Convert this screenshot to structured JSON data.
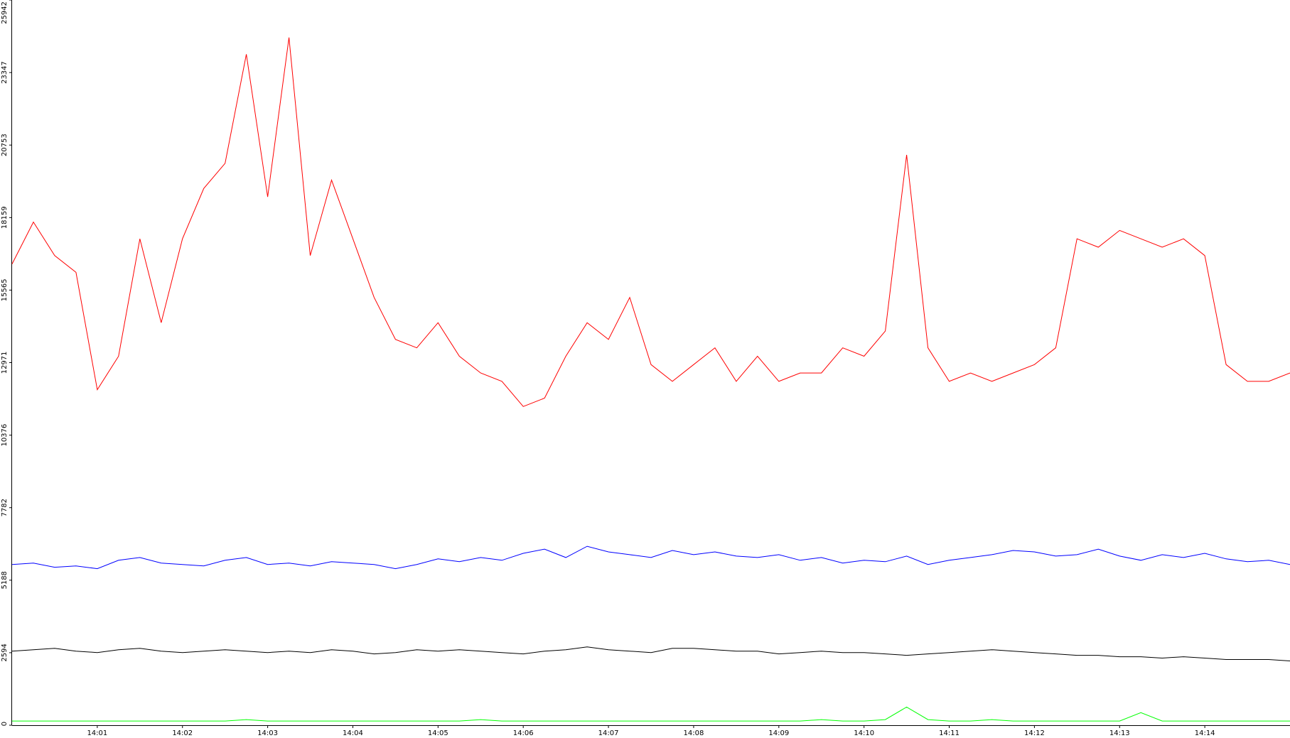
{
  "chart_data": {
    "type": "line",
    "categories": [
      null,
      null,
      null,
      null,
      "14:01",
      null,
      null,
      null,
      "14:02",
      null,
      null,
      null,
      "14:03",
      null,
      null,
      null,
      "14:04",
      null,
      null,
      null,
      "14:05",
      null,
      null,
      null,
      "14:06",
      null,
      null,
      null,
      "14:07",
      null,
      null,
      null,
      "14:08",
      null,
      null,
      null,
      "14:09",
      null,
      null,
      null,
      "14:10",
      null,
      null,
      null,
      "14:11",
      null,
      null,
      null,
      "14:12",
      null,
      null,
      null,
      "14:13",
      null,
      null,
      null,
      "14:14",
      null,
      null,
      null,
      null
    ],
    "series": [
      {
        "color": "#ff0000",
        "values": [
          16500,
          18000,
          16800,
          16200,
          12000,
          13200,
          17400,
          14400,
          17400,
          19200,
          20100,
          24000,
          18900,
          24600,
          16800,
          19500,
          17400,
          15300,
          13800,
          13500,
          14400,
          13200,
          12600,
          12300,
          11400,
          11700,
          13200,
          14400,
          13800,
          15300,
          12900,
          12300,
          12900,
          13500,
          12300,
          13200,
          12300,
          12600,
          12600,
          13500,
          13200,
          14100,
          20400,
          13500,
          12300,
          12600,
          12300,
          12600,
          12900,
          13500,
          17400,
          17100,
          17700,
          17400,
          17100,
          17400,
          16800,
          12900,
          12300,
          12300,
          12600
        ]
      },
      {
        "color": "#0000ff",
        "values": [
          5750,
          5800,
          5650,
          5700,
          5600,
          5900,
          6000,
          5800,
          5750,
          5700,
          5900,
          6000,
          5750,
          5800,
          5700,
          5850,
          5800,
          5750,
          5600,
          5750,
          5950,
          5850,
          6000,
          5900,
          6150,
          6300,
          6000,
          6400,
          6200,
          6100,
          6000,
          6250,
          6100,
          6200,
          6050,
          6000,
          6100,
          5900,
          6000,
          5800,
          5900,
          5850,
          6050,
          5750,
          5900,
          6000,
          6100,
          6250,
          6200,
          6050,
          6100,
          6300,
          6050,
          5900,
          6100,
          6000,
          6150,
          5950,
          5850,
          5900,
          5750
        ]
      },
      {
        "color": "#000000",
        "values": [
          2650,
          2700,
          2750,
          2650,
          2600,
          2700,
          2750,
          2650,
          2600,
          2650,
          2700,
          2650,
          2600,
          2650,
          2600,
          2700,
          2650,
          2550,
          2600,
          2700,
          2650,
          2700,
          2650,
          2600,
          2550,
          2650,
          2700,
          2800,
          2700,
          2650,
          2600,
          2750,
          2750,
          2700,
          2650,
          2650,
          2550,
          2600,
          2650,
          2600,
          2600,
          2550,
          2500,
          2550,
          2600,
          2650,
          2700,
          2650,
          2600,
          2550,
          2500,
          2500,
          2450,
          2450,
          2400,
          2450,
          2400,
          2350,
          2350,
          2350,
          2300
        ]
      },
      {
        "color": "#00ff00",
        "values": [
          150,
          150,
          150,
          150,
          150,
          150,
          150,
          150,
          150,
          150,
          150,
          200,
          150,
          150,
          150,
          150,
          150,
          150,
          150,
          150,
          150,
          150,
          200,
          150,
          150,
          150,
          150,
          150,
          150,
          150,
          150,
          150,
          150,
          150,
          150,
          150,
          150,
          150,
          200,
          150,
          150,
          200,
          650,
          200,
          150,
          150,
          200,
          150,
          150,
          150,
          150,
          150,
          150,
          450,
          150,
          150,
          150,
          150,
          150,
          150,
          150
        ]
      }
    ],
    "ylim": [
      0,
      25942
    ],
    "yticks": [
      0,
      2594,
      5188,
      7782,
      10376,
      12971,
      15565,
      18159,
      20753,
      23347,
      25942
    ]
  }
}
